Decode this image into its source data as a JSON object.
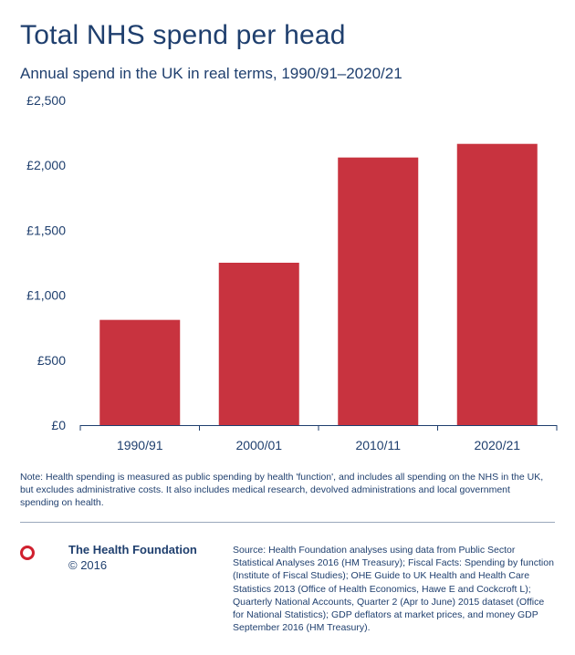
{
  "title": "Total NHS spend per head",
  "subtitle": "Annual spend in the UK in real terms, 1990/91–2020/21",
  "chart_data": {
    "type": "bar",
    "categories": [
      "1990/91",
      "2000/01",
      "2010/11",
      "2020/21"
    ],
    "values": [
      810,
      1250,
      2060,
      2165
    ],
    "ylim": [
      0,
      2500
    ],
    "yticks": [
      0,
      500,
      1000,
      1500,
      2000,
      2500
    ],
    "ytick_labels": [
      "£0",
      "£500",
      "£1,000",
      "£1,500",
      "£2,000",
      "£2,500"
    ],
    "xlabel": "",
    "ylabel": "",
    "grid": false,
    "bar_color": "#c8333f"
  },
  "note": "Note: Health spending is measured as public spending by health 'function', and includes all spending on the NHS in the UK, but excludes administrative costs. It also includes medical research, devolved administrations and local government spending on health.",
  "footer": {
    "org_name": "The Health Foundation",
    "copyright": "© 2016",
    "logo_icon": "circle-logo-icon",
    "accent_color": "#d0202e",
    "source": "Source: Health Foundation analyses using data from Public Sector Statistical Analyses 2016 (HM Treasury); Fiscal Facts: Spending by function (Institute of Fiscal Studies); OHE Guide to UK Health and Health Care Statistics 2013 (Office of Health Economics, Hawe E and Cockcroft L); Quarterly National Accounts, Quarter 2 (Apr to June) 2015 dataset (Office for National Statistics); GDP deflators at market prices, and money GDP September 2016 (HM Treasury)."
  }
}
